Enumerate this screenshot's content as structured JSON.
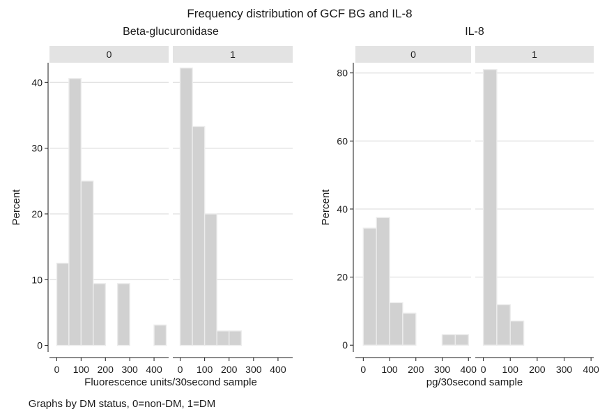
{
  "title": "Frequency distribution of GCF BG and IL-8",
  "note": "Graphs by DM status, 0=non-DM, 1=DM",
  "colors": {
    "bar_fill": "#d1d1d1",
    "bar_edge": "#ececec",
    "strip": "#e3e3e3",
    "grid": "#e3e3e3"
  },
  "chart_data": [
    {
      "type": "bar",
      "title": "Beta-glucuronidase",
      "xlabel": "Fluorescence units/30second sample",
      "ylabel": "Percent",
      "xlim": [
        -30,
        460
      ],
      "ylim": [
        -1,
        43
      ],
      "xticks": [
        "0",
        "100",
        "200",
        "300",
        "400"
      ],
      "yticks": [
        "0",
        "10",
        "20",
        "30",
        "40"
      ],
      "grid": true,
      "panels": [
        {
          "label": "0",
          "bins": [
            {
              "x0": 0,
              "x1": 50,
              "value": 12.5
            },
            {
              "x0": 50,
              "x1": 100,
              "value": 40.6
            },
            {
              "x0": 100,
              "x1": 150,
              "value": 25.0
            },
            {
              "x0": 150,
              "x1": 200,
              "value": 9.4
            },
            {
              "x0": 250,
              "x1": 300,
              "value": 9.4
            },
            {
              "x0": 400,
              "x1": 450,
              "value": 3.1
            }
          ]
        },
        {
          "label": "1",
          "bins": [
            {
              "x0": 0,
              "x1": 50,
              "value": 42.2
            },
            {
              "x0": 50,
              "x1": 100,
              "value": 33.3
            },
            {
              "x0": 100,
              "x1": 150,
              "value": 20.0
            },
            {
              "x0": 150,
              "x1": 200,
              "value": 2.2
            },
            {
              "x0": 200,
              "x1": 250,
              "value": 2.2
            }
          ]
        }
      ]
    },
    {
      "type": "bar",
      "title": "IL-8",
      "xlabel": "pg/30second sample",
      "ylabel": "Percent",
      "xlim": [
        -30,
        410
      ],
      "ylim": [
        -2,
        83
      ],
      "xticks": [
        "0",
        "100",
        "200",
        "300",
        "400"
      ],
      "yticks": [
        "0",
        "20",
        "40",
        "60",
        "80"
      ],
      "grid": true,
      "panels": [
        {
          "label": "0",
          "bins": [
            {
              "x0": 0,
              "x1": 50,
              "value": 34.4
            },
            {
              "x0": 50,
              "x1": 100,
              "value": 37.5
            },
            {
              "x0": 100,
              "x1": 150,
              "value": 12.5
            },
            {
              "x0": 150,
              "x1": 200,
              "value": 9.4
            },
            {
              "x0": 300,
              "x1": 350,
              "value": 3.1
            },
            {
              "x0": 350,
              "x1": 400,
              "value": 3.1
            }
          ]
        },
        {
          "label": "1",
          "bins": [
            {
              "x0": 0,
              "x1": 50,
              "value": 81.0
            },
            {
              "x0": 50,
              "x1": 100,
              "value": 11.9
            },
            {
              "x0": 100,
              "x1": 150,
              "value": 7.1
            }
          ]
        }
      ]
    }
  ]
}
